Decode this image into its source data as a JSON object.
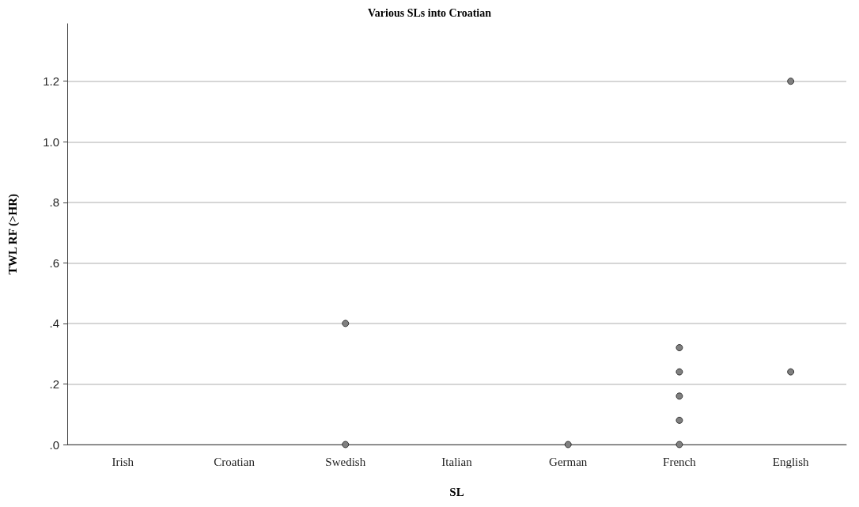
{
  "chart_data": {
    "type": "scatter",
    "title": "Various SLs into Croatian",
    "xlabel": "SL",
    "ylabel": "TWL RF (>HR)",
    "categories": [
      "Irish",
      "Croatian",
      "Swedish",
      "Italian",
      "German",
      "French",
      "English"
    ],
    "series": [
      {
        "color": "#808080",
        "x": [
          "Swedish",
          "Swedish",
          "German",
          "French",
          "French",
          "French",
          "French",
          "French",
          "English",
          "English"
        ],
        "values": [
          0.4,
          0,
          0,
          0.32,
          0.24,
          0.16,
          0.08,
          0,
          1.2,
          0.24
        ]
      }
    ],
    "ylim": [
      0,
      1.39
    ],
    "yticks": [
      {
        "value": 0,
        "label": ".0"
      },
      {
        "value": 0.2,
        "label": ".2"
      },
      {
        "value": 0.4,
        "label": ".4"
      },
      {
        "value": 0.6,
        "label": ".6"
      },
      {
        "value": 0.8,
        "label": ".8"
      },
      {
        "value": 1.0,
        "label": "1.0"
      },
      {
        "value": 1.2,
        "label": "1.2"
      }
    ],
    "grid": "y",
    "marker": "circle"
  }
}
